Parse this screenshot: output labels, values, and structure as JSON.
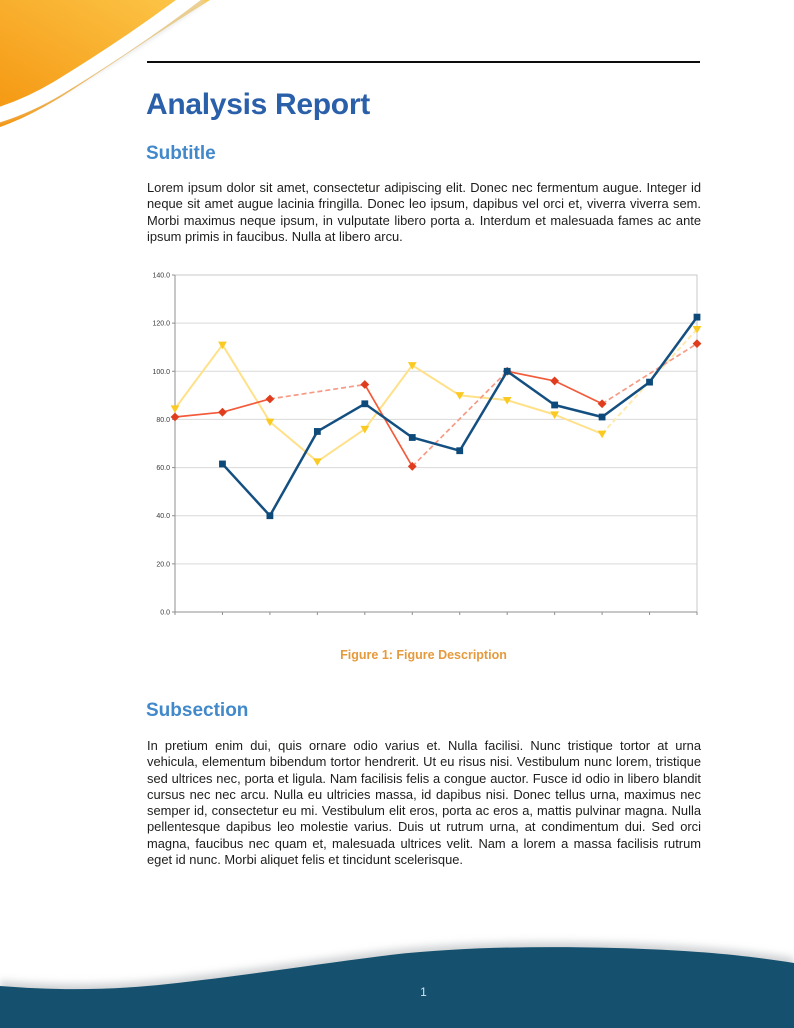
{
  "title": "Analysis Report",
  "sections": [
    {
      "heading": "Subtitle",
      "body": "Lorem ipsum dolor sit amet, consectetur adipiscing elit. Donec nec fermentum augue. Integer id neque sit amet augue lacinia fringilla. Donec leo ipsum, dapibus vel orci et, viverra viverra sem. Morbi maximus neque ipsum, in vulputate libero porta a. Interdum et malesuada fames ac ante ipsum primis in faucibus. Nulla at libero arcu."
    },
    {
      "heading": "Subsection",
      "body": "In pretium enim dui, quis ornare odio varius et. Nulla facilisi. Nunc tristique tortor at urna vehicula, elementum bibendum tortor hendrerit. Ut eu risus nisi. Vestibulum nunc lorem, tristique sed ultrices nec, porta et ligula. Nam facilisis felis a congue auctor. Fusce id odio in libero blandit cursus nec nec arcu. Nulla eu ultricies massa, id dapibus nisi. Donec tellus urna, maximus nec semper id, consectetur eu mi. Vestibulum elit eros, porta ac eros a, mattis pulvinar magna. Nulla pellentesque dapibus leo molestie varius. Duis ut rutrum urna, at condimentum dui. Sed orci magna, faucibus nec quam et, malesuada ultrices velit. Nam a lorem a massa facilisis rutrum eget id nunc. Morbi aliquet felis et tincidunt scelerisque."
    }
  ],
  "figure": {
    "caption": "Figure 1: Figure Description"
  },
  "page": {
    "number": "1"
  },
  "chart_data": {
    "type": "line",
    "title": "",
    "xlabel": "",
    "ylabel": "",
    "x": [
      0,
      1,
      2,
      3,
      4,
      5,
      6,
      7,
      8,
      9,
      10,
      11
    ],
    "x_tick_labels_visible": false,
    "ylim": [
      0,
      140
    ],
    "ytick_step": 20,
    "ytick_labels": [
      "0.0",
      "20.0",
      "40.0",
      "60.0",
      "80.0",
      "100.0",
      "120.0",
      "140.0"
    ],
    "grid": true,
    "legend_position": "none",
    "note": "null values are missing points rendered as lighter dashed interpolation segments",
    "series": [
      {
        "name": "yellow-series",
        "marker": "triangle-down",
        "color": "#ffe18a",
        "marker_color": "#fbca22",
        "gap_color": "#ffe9ad",
        "line_width": 2,
        "values": [
          84.5,
          111,
          79,
          62.5,
          76,
          102.5,
          90,
          88,
          82,
          74,
          null,
          117.5
        ]
      },
      {
        "name": "red-series",
        "marker": "diamond",
        "color": "#f25a3a",
        "marker_color": "#df3d1e",
        "gap_color": "#f79a84",
        "line_width": 1.7,
        "values": [
          81,
          83,
          88.5,
          null,
          94.5,
          60.5,
          null,
          100,
          96,
          86.5,
          null,
          111.5
        ]
      },
      {
        "name": "blue-series",
        "marker": "square",
        "color": "#134f80",
        "marker_color": "#0d4a7a",
        "gap_color": "#6e94b5",
        "line_width": 2.5,
        "values": [
          null,
          61.5,
          40,
          75,
          86.5,
          72.5,
          67,
          100,
          86,
          81,
          95.5,
          122.5
        ]
      }
    ]
  },
  "colors": {
    "title_blue": "#2a5fa9",
    "heading_blue": "#4289cb",
    "caption_orange": "#e59a3c",
    "body_text": "#1d1d1b",
    "rule_black": "#0d0d0d",
    "footer_wave": "#15516f",
    "footer_shadow": "#a7acb1",
    "page_number_text": "#cfe3f0",
    "swoosh_light": "#fdc84b",
    "swoosh_dark": "#f4950f",
    "chart_grid": "#d9d9d9",
    "chart_axis": "#8f8f8f"
  }
}
